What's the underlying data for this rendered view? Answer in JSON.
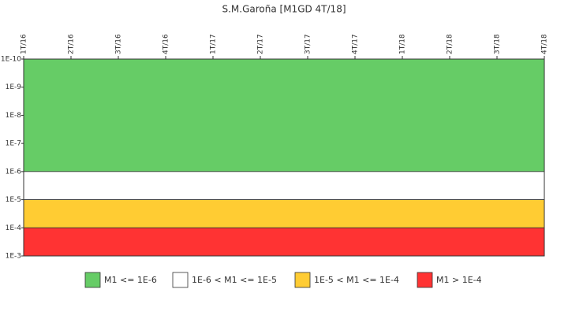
{
  "chart_data": {
    "type": "bands",
    "title": "S.M.Garoña [M1GD 4T/18]",
    "categories": [
      "1T/16",
      "2T/16",
      "3T/16",
      "4T/16",
      "1T/17",
      "2T/17",
      "3T/17",
      "4T/17",
      "1T/18",
      "2T/18",
      "3T/18",
      "4T/18"
    ],
    "log_scale": true,
    "y_inverted": true,
    "ylim": [
      1e-10,
      0.001
    ],
    "yticks": [
      {
        "value": 1e-10,
        "label": "1E-10"
      },
      {
        "value": 1e-09,
        "label": "1E-9"
      },
      {
        "value": 1e-08,
        "label": "1E-8"
      },
      {
        "value": 1e-07,
        "label": "1E-7"
      },
      {
        "value": 1e-06,
        "label": "1E-6"
      },
      {
        "value": 1e-05,
        "label": "1E-5"
      },
      {
        "value": 0.0001,
        "label": "1E-4"
      },
      {
        "value": 0.001,
        "label": "1E-3"
      }
    ],
    "bands": [
      {
        "name": "M1 <= 1E-6",
        "color": "#66cc66",
        "from": 1e-10,
        "to": 1e-06
      },
      {
        "name": "1E-6 < M1 <= 1E-5",
        "color": "#ffffff",
        "from": 1e-06,
        "to": 1e-05
      },
      {
        "name": "1E-5 < M1 <= 1E-4",
        "color": "#ffcc33",
        "from": 1e-05,
        "to": 0.0001
      },
      {
        "name": "M1 > 1E-4",
        "color": "#ff3333",
        "from": 0.0001,
        "to": 0.001
      }
    ]
  }
}
